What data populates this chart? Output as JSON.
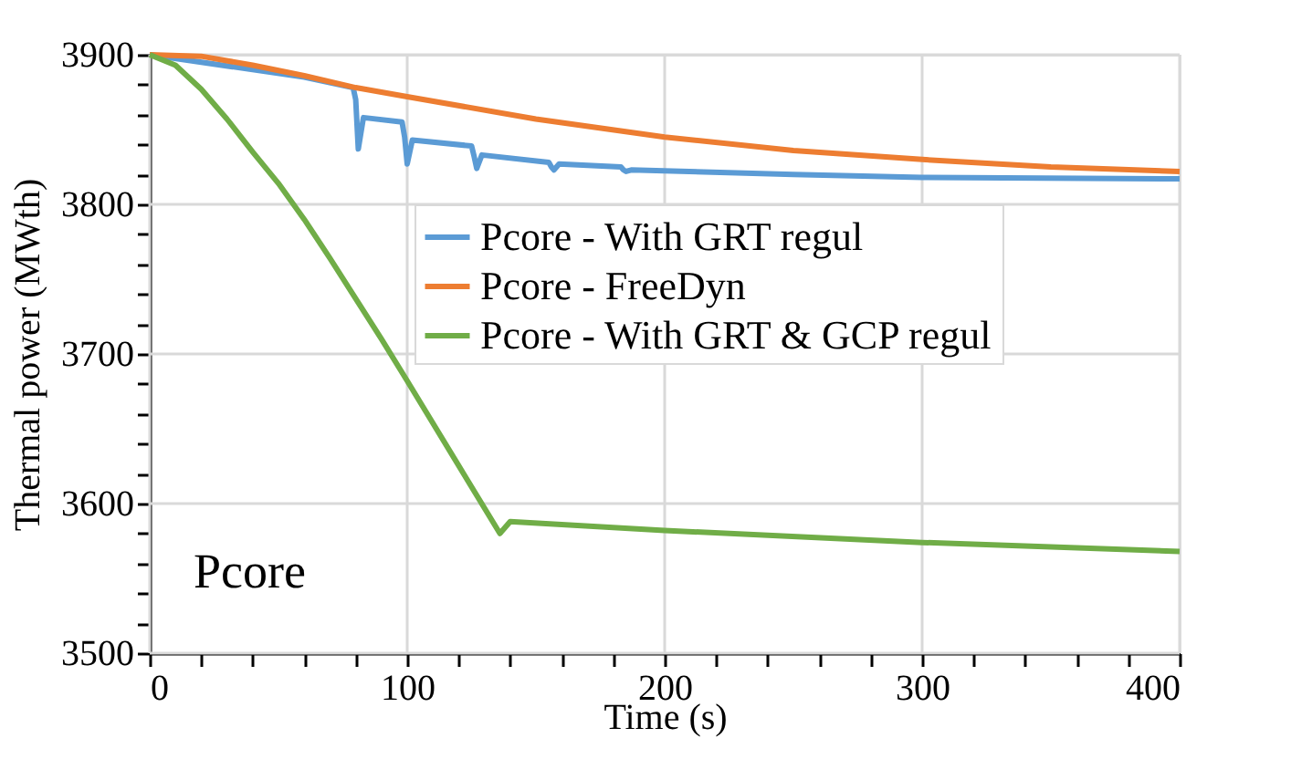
{
  "chart_data": {
    "type": "line",
    "xlabel": "Time (s)",
    "ylabel": "Thermal power (MWth)",
    "annotations": [
      "Pcore"
    ],
    "xlim": [
      0,
      400
    ],
    "ylim": [
      3500,
      3900
    ],
    "xticks": [
      0,
      {
        "value": 20,
        "label": null
      },
      {
        "value": 40,
        "label": null
      },
      {
        "value": 60,
        "label": null
      },
      {
        "value": 80,
        "label": null
      },
      100,
      {
        "value": 120,
        "label": null
      },
      {
        "value": 140,
        "label": null
      },
      {
        "value": 160,
        "label": null
      },
      {
        "value": 180,
        "label": null
      },
      200,
      {
        "value": 220,
        "label": null
      },
      {
        "value": 240,
        "label": null
      },
      {
        "value": 260,
        "label": null
      },
      {
        "value": 280,
        "label": null
      },
      300,
      {
        "value": 320,
        "label": null
      },
      {
        "value": 340,
        "label": null
      },
      {
        "value": 360,
        "label": null
      },
      {
        "value": 380,
        "label": null
      },
      400
    ],
    "yticks": [
      3500,
      {
        "value": 3520,
        "label": null
      },
      {
        "value": 3540,
        "label": null
      },
      {
        "value": 3560,
        "label": null
      },
      {
        "value": 3580,
        "label": null
      },
      3600,
      {
        "value": 3620,
        "label": null
      },
      {
        "value": 3640,
        "label": null
      },
      {
        "value": 3660,
        "label": null
      },
      {
        "value": 3680,
        "label": null
      },
      3700,
      {
        "value": 3720,
        "label": null
      },
      {
        "value": 3740,
        "label": null
      },
      {
        "value": 3760,
        "label": null
      },
      {
        "value": 3780,
        "label": null
      },
      3800,
      {
        "value": 3820,
        "label": null
      },
      {
        "value": 3840,
        "label": null
      },
      {
        "value": 3860,
        "label": null
      },
      {
        "value": 3880,
        "label": null
      },
      3900
    ],
    "grid": true,
    "legend": "right",
    "marker": "none",
    "line_style": "solid",
    "series": [
      {
        "name": "Pcore - With GRT regul",
        "color": "#5b9bd5",
        "x": [
          0,
          20,
          40,
          60,
          79,
          80,
          81,
          83,
          98,
          99,
          100,
          102,
          125,
          126,
          127,
          129,
          155,
          156,
          157,
          159,
          183,
          184,
          185,
          187,
          250,
          300,
          400
        ],
        "values": [
          3900,
          null,
          null,
          3885,
          3878,
          3870,
          3837,
          3858,
          3855,
          3845,
          3827,
          3843,
          3839,
          3832,
          3824,
          3833,
          3828,
          3825,
          3823,
          3827,
          3825,
          3823,
          3822,
          3823,
          3820,
          3818,
          3817
        ]
      },
      {
        "name": "Pcore - FreeDyn",
        "color": "#ed7d31",
        "x": [
          0,
          20,
          40,
          60,
          80,
          100,
          150,
          200,
          250,
          300,
          350,
          400
        ],
        "values": [
          3900,
          3899,
          3893,
          3886,
          3878,
          3872,
          3857,
          3845,
          3836,
          3830,
          3825,
          3822
        ]
      },
      {
        "name": "Pcore - With GRT & GCP regul",
        "color": "#70ad47",
        "x": [
          0,
          10,
          20,
          30,
          40,
          50,
          60,
          70,
          80,
          90,
          100,
          136,
          140,
          200,
          300,
          400
        ],
        "values": [
          3900,
          3893,
          3877,
          3857,
          3835,
          3814,
          3790,
          3764,
          3737,
          3710,
          3682,
          3580,
          3588,
          3582,
          3574,
          3568
        ]
      }
    ]
  }
}
